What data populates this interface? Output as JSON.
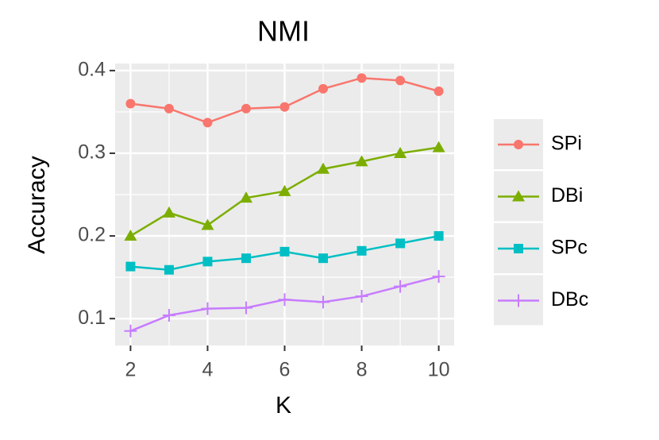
{
  "chart_data": {
    "type": "line",
    "title": "NMI",
    "x_label": "K",
    "y_label": "Accuracy",
    "x": [
      2,
      3,
      4,
      5,
      6,
      7,
      8,
      9,
      10
    ],
    "series": [
      {
        "name": "SPi",
        "color": "#f8766d",
        "shape": "circle",
        "values": [
          0.36,
          0.354,
          0.337,
          0.354,
          0.356,
          0.378,
          0.391,
          0.388,
          0.375
        ]
      },
      {
        "name": "DBi",
        "color": "#7cae00",
        "shape": "triangle",
        "values": [
          0.2,
          0.228,
          0.213,
          0.246,
          0.254,
          0.281,
          0.29,
          0.3,
          0.307
        ]
      },
      {
        "name": "SPc",
        "color": "#00bfc4",
        "shape": "square",
        "values": [
          0.163,
          0.159,
          0.169,
          0.173,
          0.181,
          0.173,
          0.182,
          0.191,
          0.2
        ]
      },
      {
        "name": "DBc",
        "color": "#c77cff",
        "shape": "plus",
        "values": [
          0.085,
          0.104,
          0.112,
          0.113,
          0.123,
          0.12,
          0.127,
          0.139,
          0.151
        ]
      }
    ],
    "xlim": [
      1.6,
      10.4
    ],
    "xticks": [
      2,
      4,
      6,
      8,
      10
    ],
    "minor_xticks": [
      3,
      5,
      7,
      9
    ],
    "ylim": [
      0.0675,
      0.4085
    ],
    "yticks": [
      {
        "value": 0.1,
        "label": "0.1"
      },
      {
        "value": 0.2,
        "label": "0.2"
      },
      {
        "value": 0.3,
        "label": "0.3"
      },
      {
        "value": 0.4,
        "label": "0.4"
      }
    ],
    "minor_yticks": [
      0.15,
      0.25,
      0.35
    ],
    "grid": true,
    "legend": "right"
  }
}
